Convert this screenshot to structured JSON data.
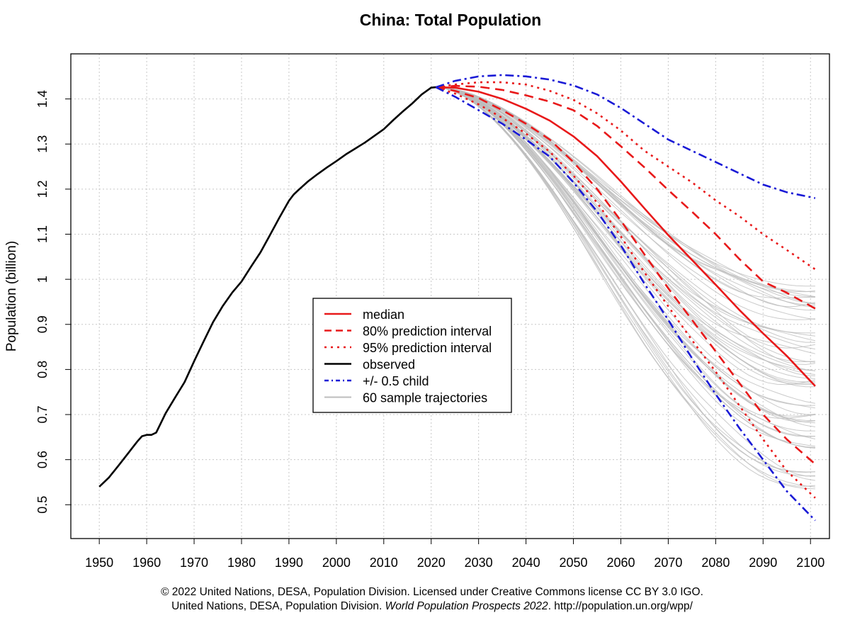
{
  "chart_data": {
    "type": "line",
    "title": "China: Total Population",
    "xlabel": "",
    "ylabel": "Population (billion)",
    "xlim": [
      1944,
      2104
    ],
    "ylim": [
      0.425,
      1.5
    ],
    "grid": true,
    "x_ticks": [
      1950,
      1960,
      1970,
      1980,
      1990,
      2000,
      2010,
      2020,
      2030,
      2040,
      2050,
      2060,
      2070,
      2080,
      2090,
      2100
    ],
    "y_ticks": [
      0.5,
      0.6,
      0.7,
      0.8,
      0.9,
      1,
      1.1,
      1.2,
      1.3,
      1.4
    ],
    "legend_position": "center",
    "legend": [
      {
        "label": "median",
        "color": "#e8191a",
        "style": "solid"
      },
      {
        "label": "80% prediction interval",
        "color": "#e8191a",
        "style": "dashed"
      },
      {
        "label": "95% prediction interval",
        "color": "#e8191a",
        "style": "dotted"
      },
      {
        "label": "observed",
        "color": "#000000",
        "style": "solid"
      },
      {
        "label": "+/- 0.5 child",
        "color": "#1a1ad6",
        "style": "dashdot"
      },
      {
        "label": "60 sample trajectories",
        "color": "#bdbdbd",
        "style": "solid"
      }
    ],
    "series": [
      {
        "name": "observed",
        "color": "#000000",
        "style": "solid",
        "x": [
          1950,
          1952,
          1954,
          1956,
          1958,
          1959,
          1960,
          1961,
          1962,
          1964,
          1966,
          1968,
          1970,
          1972,
          1974,
          1976,
          1978,
          1980,
          1982,
          1984,
          1986,
          1988,
          1990,
          1991,
          1992,
          1994,
          1996,
          1998,
          2000,
          2002,
          2004,
          2006,
          2008,
          2010,
          2012,
          2014,
          2016,
          2018,
          2020,
          2021
        ],
        "y": [
          0.54,
          0.56,
          0.586,
          0.613,
          0.64,
          0.652,
          0.655,
          0.655,
          0.66,
          0.703,
          0.738,
          0.772,
          0.818,
          0.862,
          0.905,
          0.94,
          0.97,
          0.995,
          1.028,
          1.06,
          1.098,
          1.137,
          1.174,
          1.188,
          1.198,
          1.217,
          1.233,
          1.248,
          1.262,
          1.277,
          1.29,
          1.303,
          1.318,
          1.333,
          1.353,
          1.372,
          1.39,
          1.41,
          1.425,
          1.426
        ]
      },
      {
        "name": "median",
        "color": "#e8191a",
        "style": "solid",
        "x": [
          2021,
          2025,
          2030,
          2035,
          2040,
          2045,
          2050,
          2055,
          2060,
          2065,
          2070,
          2075,
          2080,
          2085,
          2090,
          2095,
          2101
        ],
        "y": [
          1.426,
          1.425,
          1.416,
          1.4,
          1.378,
          1.352,
          1.317,
          1.273,
          1.217,
          1.157,
          1.098,
          1.043,
          0.988,
          0.932,
          0.88,
          0.83,
          0.763
        ]
      },
      {
        "name": "80% prediction interval (upper)",
        "color": "#e8191a",
        "style": "dashed",
        "x": [
          2021,
          2025,
          2030,
          2035,
          2040,
          2045,
          2050,
          2055,
          2060,
          2065,
          2070,
          2075,
          2080,
          2085,
          2090,
          2095,
          2101
        ],
        "y": [
          1.426,
          1.429,
          1.427,
          1.42,
          1.408,
          1.394,
          1.375,
          1.34,
          1.295,
          1.248,
          1.198,
          1.15,
          1.1,
          1.045,
          0.995,
          0.97,
          0.935
        ]
      },
      {
        "name": "80% prediction interval (lower)",
        "color": "#e8191a",
        "style": "dashed",
        "x": [
          2021,
          2025,
          2030,
          2035,
          2040,
          2045,
          2050,
          2055,
          2060,
          2065,
          2070,
          2075,
          2080,
          2085,
          2090,
          2095,
          2101
        ],
        "y": [
          1.426,
          1.418,
          1.402,
          1.375,
          1.345,
          1.31,
          1.26,
          1.2,
          1.13,
          1.055,
          0.98,
          0.91,
          0.84,
          0.77,
          0.7,
          0.645,
          0.59
        ]
      },
      {
        "name": "95% prediction interval (upper)",
        "color": "#e8191a",
        "style": "dotted",
        "x": [
          2021,
          2025,
          2030,
          2035,
          2040,
          2045,
          2050,
          2055,
          2060,
          2065,
          2070,
          2075,
          2080,
          2085,
          2090,
          2095,
          2101
        ],
        "y": [
          1.426,
          1.432,
          1.437,
          1.437,
          1.432,
          1.418,
          1.398,
          1.368,
          1.33,
          1.285,
          1.25,
          1.215,
          1.175,
          1.14,
          1.1,
          1.065,
          1.022
        ]
      },
      {
        "name": "95% prediction interval (lower)",
        "color": "#e8191a",
        "style": "dotted",
        "x": [
          2021,
          2025,
          2030,
          2035,
          2040,
          2045,
          2050,
          2055,
          2060,
          2065,
          2070,
          2075,
          2080,
          2085,
          2090,
          2095,
          2101
        ],
        "y": [
          1.426,
          1.412,
          1.388,
          1.358,
          1.323,
          1.283,
          1.23,
          1.17,
          1.095,
          1.015,
          0.94,
          0.865,
          0.795,
          0.72,
          0.645,
          0.575,
          0.515
        ]
      },
      {
        "name": "+/- 0.5 child (upper)",
        "color": "#1a1ad6",
        "style": "dashdot",
        "x": [
          2021,
          2025,
          2030,
          2035,
          2040,
          2045,
          2050,
          2055,
          2060,
          2065,
          2070,
          2075,
          2080,
          2085,
          2090,
          2095,
          2101
        ],
        "y": [
          1.426,
          1.44,
          1.45,
          1.453,
          1.45,
          1.443,
          1.43,
          1.41,
          1.38,
          1.345,
          1.31,
          1.285,
          1.26,
          1.235,
          1.21,
          1.193,
          1.18
        ]
      },
      {
        "name": "+/- 0.5 child (lower)",
        "color": "#1a1ad6",
        "style": "dashdot",
        "x": [
          2021,
          2025,
          2030,
          2035,
          2040,
          2045,
          2050,
          2055,
          2060,
          2065,
          2070,
          2075,
          2080,
          2085,
          2090,
          2095,
          2101
        ],
        "y": [
          1.426,
          1.405,
          1.375,
          1.345,
          1.31,
          1.272,
          1.215,
          1.15,
          1.075,
          0.99,
          0.91,
          0.825,
          0.745,
          0.67,
          0.6,
          0.53,
          0.465
        ]
      }
    ],
    "sample_trajectories": {
      "count": 60,
      "color": "#bdbdbd",
      "x": [
        2021,
        2101
      ],
      "y_start": 1.426,
      "y_end_range": [
        0.53,
        1.0
      ]
    }
  },
  "credit": {
    "line1": "© 2022 United Nations, DESA, Population Division. Licensed under Creative Commons license CC BY 3.0 IGO.",
    "line2_prefix": "United Nations, DESA, Population Division. ",
    "line2_italic": "World Population Prospects 2022",
    "line2_suffix": ". http://population.un.org/wpp/"
  }
}
